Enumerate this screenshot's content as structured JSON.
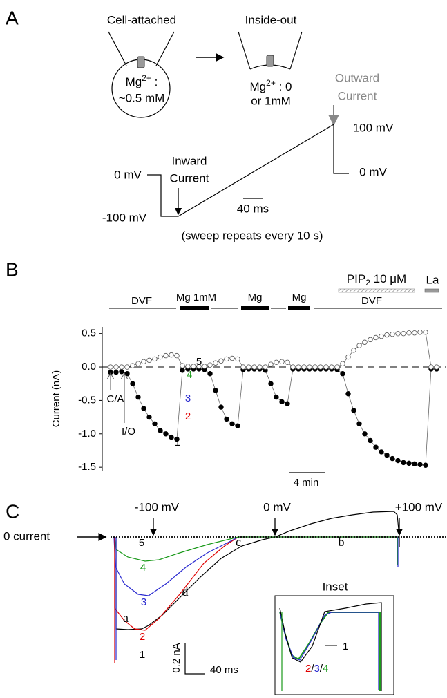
{
  "panel_a": {
    "label": "A",
    "cell_attached": {
      "title": "Cell-attached",
      "ion": "Mg",
      "charge": "2+",
      "sep": ":",
      "conc": "~0.5 mM"
    },
    "inside_out": {
      "title": "Inside-out",
      "ion": "Mg",
      "charge": "2+",
      "conc": ": 0",
      "conc2": "or 1mM"
    },
    "outward": [
      "Outward",
      "Current"
    ],
    "inward": [
      "Inward",
      "Current"
    ],
    "voltages": {
      "v0_left": "0 mV",
      "vm100": "-100 mV",
      "v100": "100 mV",
      "v0_right": "0 mV"
    },
    "scale": "40 ms",
    "note": "(sweep repeats every 10 s)"
  },
  "panel_b": {
    "label": "B",
    "pip": {
      "name": "PIP",
      "sub": "2",
      "conc": " 10 μM"
    },
    "la": "La",
    "dvf1": "DVF",
    "mg1": "Mg 1mM",
    "mg2": "Mg",
    "mg3": "Mg",
    "dvf2": "DVF",
    "points": [
      "1",
      "2",
      "3",
      "4",
      "5"
    ],
    "ca": "C/A",
    "io": "I/O",
    "scale": "4 min"
  },
  "chart_data": {
    "type": "line",
    "ylabel": "Current (nA)",
    "ylim": [
      -1.55,
      0.6
    ],
    "yticks": [
      0.5,
      {
        "value": 0,
        "label": "0.0"
      },
      {
        "value": -0.5,
        "label": "-0.5"
      },
      {
        "value": -1,
        "label": "-1.0"
      },
      -1.5
    ],
    "zero_line": true,
    "series": [
      {
        "color": "#000000",
        "filled": true,
        "values": [
          -0.08,
          -0.08,
          -0.07,
          -0.1,
          -0.25,
          -0.45,
          -0.62,
          -0.75,
          -0.85,
          -0.95,
          -1.0,
          -1.05,
          -1.08,
          -0.05,
          -0.03,
          -0.03,
          -0.03,
          -0.04,
          -0.1,
          -0.35,
          -0.6,
          -0.78,
          -0.85,
          -0.88,
          -0.04,
          -0.03,
          -0.03,
          -0.03,
          -0.05,
          -0.25,
          -0.45,
          -0.52,
          -0.55,
          -0.03,
          -0.03,
          -0.03,
          -0.03,
          -0.03,
          -0.03,
          -0.03,
          -0.03,
          -0.04,
          -0.1,
          -0.4,
          -0.65,
          -0.85,
          -1.0,
          -1.1,
          -1.2,
          -1.27,
          -1.32,
          -1.37,
          -1.4,
          -1.43,
          -1.44,
          -1.45,
          -1.46,
          -1.47,
          -0.03,
          -0.03
        ]
      },
      {
        "color": "#555555",
        "filled": false,
        "values": [
          0,
          0,
          0,
          0,
          0.02,
          0.05,
          0.08,
          0.1,
          0.12,
          0.15,
          0.17,
          0.18,
          0.17,
          0.02,
          0.01,
          0.01,
          0.01,
          0.01,
          0.03,
          0.06,
          0.09,
          0.12,
          0.13,
          0.12,
          0,
          0,
          0,
          0,
          0,
          0.04,
          0.07,
          0.08,
          0.07,
          0,
          0,
          0,
          0,
          0,
          0,
          0,
          0,
          0,
          0.05,
          0.15,
          0.25,
          0.32,
          0.37,
          0.41,
          0.44,
          0.46,
          0.48,
          0.49,
          0.5,
          0.5,
          0.51,
          0.51,
          0.52,
          0.52,
          0,
          0
        ]
      }
    ]
  },
  "panel_c": {
    "label": "C",
    "v_m100": "-100 mV",
    "v0": "0 mV",
    "v100": "+100 mV",
    "zero": "0 current",
    "traces": [
      "1",
      "2",
      "3",
      "4",
      "5"
    ],
    "letters": [
      "a",
      "b",
      "c",
      "d"
    ],
    "scale_y": "0.2 nA",
    "scale_x": "40 ms",
    "inset": {
      "title": "Inset",
      "n1": "1",
      "n2": "2",
      "slash1": "/",
      "n3": "3",
      "slash2": "/",
      "n4": "4"
    }
  }
}
